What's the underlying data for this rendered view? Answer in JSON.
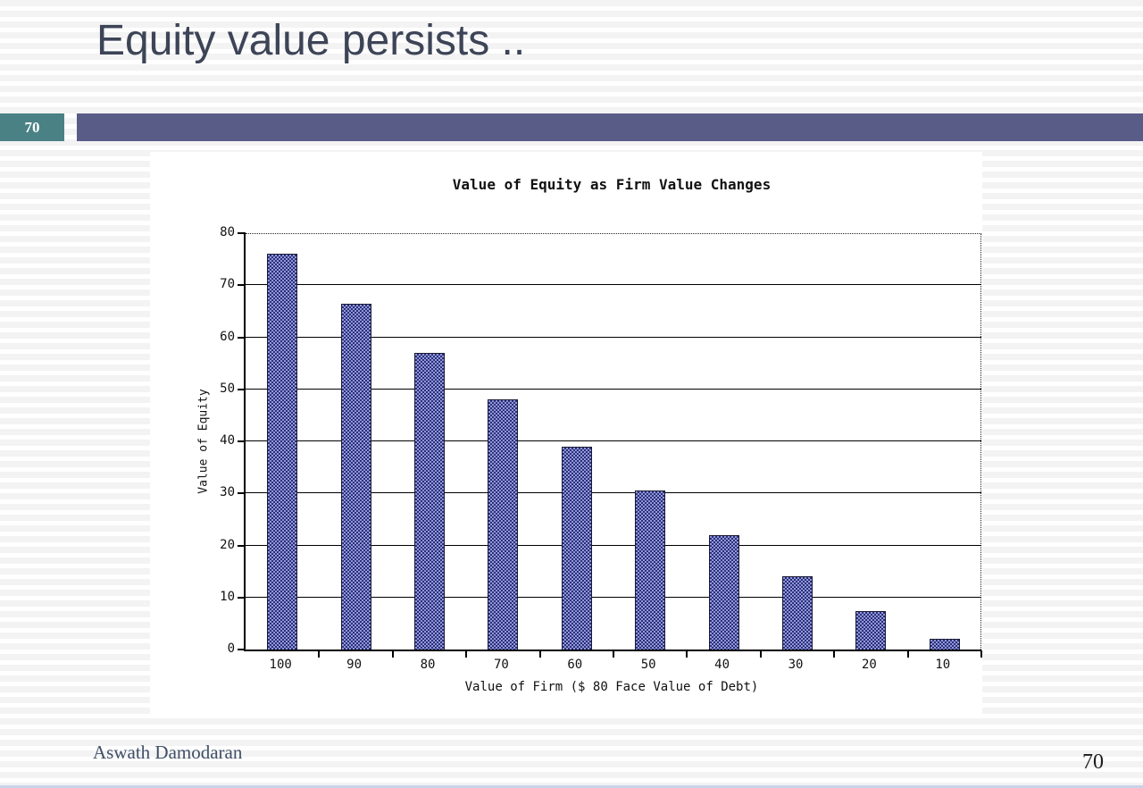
{
  "slide": {
    "title": "Equity value persists ..",
    "slide_number_badge": "70",
    "footer_author": "Aswath Damodaran",
    "page_number": "70"
  },
  "colors": {
    "badge_teal": "#4a8185",
    "header_bar_purple": "#5a5c88",
    "title_text": "#3d4457",
    "bar_fill": "#8e97e2",
    "bar_pattern_dot": "#2e3070",
    "bar_border": "#1a1a33",
    "stripe_gray": "#f3f3f3",
    "bottom_accent": "#c7d3ea"
  },
  "chart_data": {
    "type": "bar",
    "title": "Value of Equity as Firm Value Changes",
    "xlabel": "Value of Firm ($ 80 Face Value of Debt)",
    "ylabel": "Value of Equity",
    "categories": [
      "100",
      "90",
      "80",
      "70",
      "60",
      "50",
      "40",
      "30",
      "20",
      "10"
    ],
    "values": [
      76,
      66.5,
      57,
      48,
      39,
      30.5,
      22,
      14,
      7.3,
      2
    ],
    "ylim": [
      0,
      80
    ],
    "ytick_step": 10,
    "yticks": [
      0,
      10,
      20,
      30,
      40,
      50,
      60,
      70,
      80
    ],
    "grid": true,
    "legend": "none"
  }
}
